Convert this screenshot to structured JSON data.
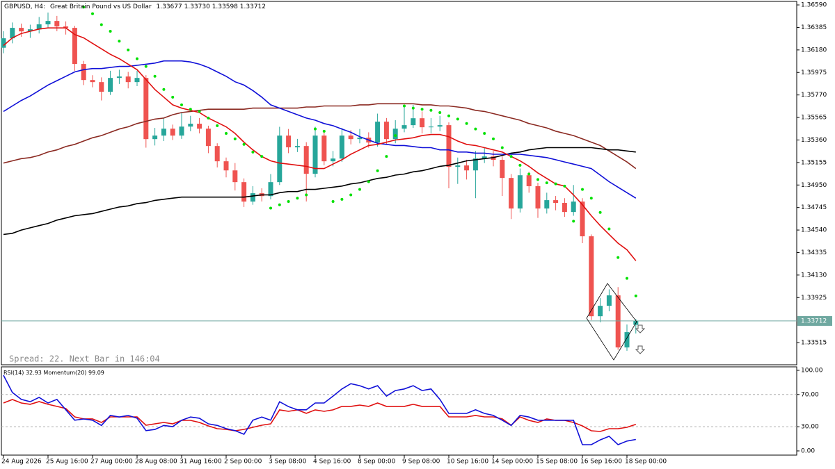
{
  "chart_data": [
    {
      "type": "candlestick",
      "symbol": "GBPUSD, H4:",
      "description": "Great Britain Pound vs US Dollar",
      "ohlc_labels": [
        "1.33677",
        "1.33730",
        "1.33598",
        "1.33712"
      ],
      "status": "Spread: 22. Next Bar in 146:04",
      "up_color": "#26a69a",
      "down_color": "#ef5350",
      "price_line_color": "#6fa8a0",
      "open": [
        1.362,
        1.36286,
        1.36381,
        1.36349,
        1.36368,
        1.36413,
        1.36444,
        1.36394,
        1.36381,
        1.36052,
        1.35906,
        1.35887,
        1.35799,
        1.35925,
        1.35938,
        1.35887,
        1.35925,
        1.35368,
        1.354,
        1.35463,
        1.354,
        1.35482,
        1.35508,
        1.35463,
        1.35305,
        1.35166,
        1.35083,
        1.34976,
        1.34799,
        1.34875,
        1.34849,
        1.34976,
        1.354,
        1.35293,
        1.35305,
        1.35052,
        1.354,
        1.35166,
        1.35191,
        1.354,
        1.35368,
        1.35381,
        1.35337,
        1.35527,
        1.35368,
        1.35463,
        1.35495,
        1.35558,
        1.35476,
        1.35482,
        1.35495,
        1.35115,
        1.35128,
        1.35083,
        1.35191,
        1.3521,
        1.35179,
        1.35014,
        1.34736,
        1.35039,
        1.34939,
        1.34736,
        1.34812,
        1.34787,
        1.34704,
        1.34799,
        1.34483,
        1.33755,
        1.3385,
        1.33945,
        1.33471,
        1.33677
      ],
      "high": [
        1.3635,
        1.3643,
        1.3642,
        1.3641,
        1.3648,
        1.3652,
        1.3649,
        1.3644,
        1.364,
        1.3608,
        1.3595,
        1.3593,
        1.3599,
        1.36,
        1.3598,
        1.3599,
        1.3595,
        1.3547,
        1.3556,
        1.355,
        1.3561,
        1.3558,
        1.3556,
        1.3549,
        1.3533,
        1.352,
        1.3515,
        1.3501,
        1.3494,
        1.3492,
        1.3505,
        1.3548,
        1.3546,
        1.3537,
        1.3534,
        1.3548,
        1.3543,
        1.3526,
        1.3547,
        1.3545,
        1.3546,
        1.3543,
        1.356,
        1.3556,
        1.3554,
        1.3566,
        1.3568,
        1.3562,
        1.3556,
        1.3558,
        1.3552,
        1.352,
        1.3518,
        1.3526,
        1.3529,
        1.3526,
        1.3521,
        1.3505,
        1.351,
        1.3507,
        1.3497,
        1.3488,
        1.3485,
        1.3483,
        1.3495,
        1.3483,
        1.345,
        1.3392,
        1.34,
        1.3402,
        1.3368,
        1.3373
      ],
      "low": [
        1.3615,
        1.3624,
        1.363,
        1.3629,
        1.3633,
        1.3638,
        1.3635,
        1.3632,
        1.3599,
        1.3586,
        1.3584,
        1.3572,
        1.3577,
        1.3587,
        1.3583,
        1.3585,
        1.3529,
        1.3531,
        1.3535,
        1.3536,
        1.3537,
        1.3544,
        1.3542,
        1.3524,
        1.3511,
        1.3502,
        1.349,
        1.3475,
        1.3477,
        1.348,
        1.3482,
        1.3495,
        1.3524,
        1.3525,
        1.348,
        1.3502,
        1.3513,
        1.3512,
        1.3516,
        1.3532,
        1.3533,
        1.3529,
        1.353,
        1.3532,
        1.3533,
        1.3543,
        1.3547,
        1.3542,
        1.3542,
        1.3544,
        1.3492,
        1.3496,
        1.35,
        1.3483,
        1.3515,
        1.3512,
        1.3485,
        1.3464,
        1.347,
        1.3488,
        1.3465,
        1.3469,
        1.3472,
        1.3466,
        1.3467,
        1.3442,
        1.3372,
        1.337,
        1.338,
        1.3345,
        1.3344,
        1.33598
      ],
      "close": [
        1.36286,
        1.36381,
        1.36349,
        1.36368,
        1.36413,
        1.36444,
        1.36394,
        1.36381,
        1.36052,
        1.35906,
        1.35887,
        1.35799,
        1.35925,
        1.35938,
        1.35887,
        1.35925,
        1.35368,
        1.354,
        1.35463,
        1.354,
        1.35482,
        1.35508,
        1.35463,
        1.35305,
        1.35166,
        1.35083,
        1.34976,
        1.34799,
        1.34875,
        1.34849,
        1.34976,
        1.354,
        1.35293,
        1.35305,
        1.35052,
        1.354,
        1.35166,
        1.35191,
        1.354,
        1.35368,
        1.35381,
        1.35337,
        1.35527,
        1.35368,
        1.35463,
        1.35495,
        1.35558,
        1.35476,
        1.35482,
        1.35495,
        1.35115,
        1.35128,
        1.35083,
        1.35191,
        1.3521,
        1.35179,
        1.35014,
        1.34736,
        1.35039,
        1.34939,
        1.34736,
        1.34812,
        1.34787,
        1.34704,
        1.34799,
        1.34483,
        1.33755,
        1.3385,
        1.33945,
        1.33471,
        1.3361,
        1.33712
      ],
      "overlays": [
        {
          "type": "line",
          "color": "#8b2a22",
          "values": [
            1.3515,
            1.3517,
            1.3519,
            1.352,
            1.3522,
            1.3525,
            1.3527,
            1.353,
            1.3532,
            1.3535,
            1.3538,
            1.354,
            1.3543,
            1.3546,
            1.3548,
            1.3551,
            1.3553,
            1.3555,
            1.3556,
            1.3559,
            1.3561,
            1.3562,
            1.3563,
            1.3564,
            1.3564,
            1.3564,
            1.3564,
            1.3564,
            1.3565,
            1.3565,
            1.3565,
            1.3565,
            1.3565,
            1.3565,
            1.3566,
            1.3566,
            1.3567,
            1.3567,
            1.3567,
            1.3567,
            1.3568,
            1.3568,
            1.3569,
            1.3569,
            1.3569,
            1.3569,
            1.3569,
            1.3568,
            1.3568,
            1.3567,
            1.3567,
            1.3566,
            1.3565,
            1.3563,
            1.3562,
            1.356,
            1.3558,
            1.3556,
            1.3554,
            1.3551,
            1.3549,
            1.3547,
            1.3544,
            1.3542,
            1.354,
            1.3537,
            1.3534,
            1.3531,
            1.3526,
            1.3521,
            1.3516,
            1.351
          ]
        },
        {
          "type": "line",
          "color": "#000000",
          "values": [
            1.345,
            1.3451,
            1.3454,
            1.3456,
            1.3458,
            1.346,
            1.3463,
            1.3465,
            1.3467,
            1.3468,
            1.3469,
            1.3471,
            1.3473,
            1.3475,
            1.3476,
            1.3478,
            1.3479,
            1.3481,
            1.3482,
            1.3483,
            1.3484,
            1.3484,
            1.3484,
            1.3484,
            1.3484,
            1.3484,
            1.3484,
            1.3484,
            1.3485,
            1.3486,
            1.3486,
            1.3488,
            1.3489,
            1.3489,
            1.3491,
            1.3491,
            1.3492,
            1.3493,
            1.3494,
            1.3496,
            1.3497,
            1.3499,
            1.3501,
            1.3502,
            1.3504,
            1.3505,
            1.3507,
            1.3508,
            1.351,
            1.3512,
            1.3513,
            1.3515,
            1.3517,
            1.3518,
            1.3519,
            1.352,
            1.3522,
            1.3524,
            1.3525,
            1.3527,
            1.3528,
            1.3529,
            1.3529,
            1.3529,
            1.3529,
            1.3529,
            1.3529,
            1.3528,
            1.3527,
            1.3527,
            1.3526,
            1.3525
          ]
        },
        {
          "type": "line",
          "color": "#1010d8",
          "values": [
            1.3562,
            1.3567,
            1.3572,
            1.3576,
            1.3581,
            1.3586,
            1.359,
            1.3594,
            1.3598,
            1.36,
            1.3601,
            1.3601,
            1.3602,
            1.3603,
            1.3603,
            1.3604,
            1.3605,
            1.3606,
            1.3608,
            1.3608,
            1.3608,
            1.3607,
            1.3605,
            1.3602,
            1.3598,
            1.3594,
            1.3589,
            1.3586,
            1.3581,
            1.3575,
            1.3568,
            1.3565,
            1.3562,
            1.3559,
            1.3556,
            1.3554,
            1.3551,
            1.3549,
            1.3546,
            1.3543,
            1.3539,
            1.3536,
            1.3533,
            1.3532,
            1.3531,
            1.3531,
            1.353,
            1.3529,
            1.3529,
            1.3527,
            1.3527,
            1.3525,
            1.3525,
            1.3524,
            1.3524,
            1.3523,
            1.3523,
            1.3523,
            1.3523,
            1.3522,
            1.3521,
            1.352,
            1.3518,
            1.3516,
            1.3514,
            1.3512,
            1.351,
            1.3504,
            1.3498,
            1.3493,
            1.3488,
            1.3483
          ]
        },
        {
          "type": "line",
          "color": "#e01010",
          "values": [
            1.3622,
            1.3629,
            1.3633,
            1.3635,
            1.3637,
            1.3638,
            1.3638,
            1.3638,
            1.3632,
            1.3629,
            1.3624,
            1.3619,
            1.3614,
            1.361,
            1.3605,
            1.36,
            1.3591,
            1.3582,
            1.3575,
            1.3568,
            1.3565,
            1.3563,
            1.3561,
            1.3556,
            1.3552,
            1.3548,
            1.3542,
            1.3534,
            1.3527,
            1.3521,
            1.3517,
            1.3515,
            1.3514,
            1.3513,
            1.3512,
            1.351,
            1.351,
            1.3514,
            1.3518,
            1.3523,
            1.3527,
            1.3531,
            1.3532,
            1.3534,
            1.3536,
            1.3537,
            1.3538,
            1.354,
            1.3541,
            1.3541,
            1.3539,
            1.3535,
            1.3532,
            1.3531,
            1.3529,
            1.3527,
            1.3525,
            1.3521,
            1.3517,
            1.3512,
            1.3506,
            1.3501,
            1.3496,
            1.3494,
            1.3486,
            1.3477,
            1.3467,
            1.3458,
            1.345,
            1.3442,
            1.3436,
            1.3426
          ]
        },
        {
          "type": "dots",
          "color": "#00e000",
          "values": [
            null,
            null,
            null,
            null,
            null,
            null,
            null,
            null,
            null,
            1.3657,
            1.3651,
            1.3641,
            1.3635,
            1.3626,
            1.3618,
            1.361,
            1.3603,
            1.3594,
            1.3582,
            1.3575,
            1.3568,
            1.3564,
            1.3562,
            1.3556,
            1.3549,
            1.3542,
            1.3537,
            1.3532,
            1.3525,
            1.3521,
            1.3474,
            1.3477,
            1.348,
            1.3483,
            1.3486,
            1.3546,
            1.3544,
            1.348,
            1.3482,
            1.3486,
            1.3491,
            1.3498,
            1.3508,
            1.3521,
            1.354,
            1.3567,
            1.3565,
            1.3564,
            1.3563,
            1.3561,
            1.3558,
            1.3555,
            1.3551,
            1.3546,
            1.3542,
            1.3537,
            1.3529,
            1.3521,
            1.3513,
            1.3505,
            1.35,
            1.3497,
            1.3496,
            1.3494,
            1.3462,
            1.3491,
            1.3483,
            1.347,
            1.3455,
            1.3429,
            1.341,
            1.3394
          ]
        }
      ],
      "ylim": [
        1.33313,
        1.36622
      ],
      "yticks": [
        {
          "value": 1.3659,
          "label": "1.36590"
        },
        1.36385,
        {
          "value": 1.3618,
          "label": "1.36180"
        },
        1.35975,
        {
          "value": 1.3577,
          "label": "1.35770"
        },
        1.35565,
        {
          "value": 1.3536,
          "label": "1.35360"
        },
        1.35155,
        {
          "value": 1.3495,
          "label": "1.34950"
        },
        1.34745,
        {
          "value": 1.3454,
          "label": "1.34540"
        },
        1.34335,
        {
          "value": 1.3413,
          "label": "1.34130"
        },
        1.33925,
        1.33515
      ]
    },
    {
      "type": "line",
      "series": [
        {
          "name": "RSI(14)",
          "color": "#e01010",
          "values": [
            59.5,
            63.8,
            59.5,
            57.8,
            61.2,
            57.8,
            55.2,
            52.6,
            42.2,
            39.7,
            39.7,
            35.3,
            42.2,
            42.2,
            42.2,
            42.2,
            31.9,
            33.6,
            35.3,
            33.6,
            37.9,
            37.9,
            35.3,
            31.0,
            27.6,
            26.7,
            25.0,
            26.7,
            29.3,
            31.9,
            33.6,
            50.9,
            49.1,
            50.9,
            46.6,
            50.9,
            49.1,
            50.9,
            55.2,
            55.2,
            56.9,
            55.2,
            59.5,
            55.2,
            55.2,
            55.2,
            57.8,
            55.2,
            55.2,
            55.2,
            42.2,
            42.2,
            42.2,
            44.0,
            42.2,
            42.2,
            39.7,
            31.9,
            42.2,
            37.9,
            35.3,
            39.7,
            37.9,
            37.9,
            35.3,
            31.0,
            25.0,
            24.1,
            27.6,
            27.6,
            29.3,
            32.93
          ]
        },
        {
          "name": "Momentum(20)",
          "color": "#1010d8",
          "axis": "y2",
          "values": [
            100.69,
            100.26,
            100.09,
            100.03,
            100.14,
            100.0,
            100.09,
            99.83,
            99.57,
            99.6,
            99.57,
            99.44,
            99.69,
            99.65,
            99.69,
            99.62,
            99.31,
            99.34,
            99.44,
            99.41,
            99.57,
            99.65,
            99.62,
            99.48,
            99.44,
            99.36,
            99.31,
            99.22,
            99.57,
            99.65,
            99.57,
            100.03,
            99.91,
            99.83,
            99.83,
            100.0,
            100.0,
            100.17,
            100.35,
            100.48,
            100.43,
            100.35,
            100.43,
            100.17,
            100.31,
            100.35,
            100.43,
            100.31,
            100.35,
            100.09,
            99.74,
            99.74,
            99.74,
            99.83,
            99.74,
            99.69,
            99.57,
            99.44,
            99.69,
            99.65,
            99.57,
            99.57,
            99.57,
            99.57,
            99.57,
            98.96,
            98.96,
            99.08,
            99.17,
            98.96,
            99.05,
            99.09
          ]
        }
      ],
      "ylim": [
        -5.2,
        104.3
      ],
      "yticks": [
        {
          "value": 100,
          "label": "100.00"
        },
        {
          "value": 70,
          "label": "70.00"
        },
        {
          "value": 30,
          "label": "30.00"
        },
        {
          "value": 0,
          "label": "0.00"
        }
      ],
      "y2lim": [
        98.7,
        100.9
      ],
      "grid": "dashed",
      "xticks": [
        {
          "value": 0,
          "label": "24 Aug 2026"
        },
        {
          "value": 5,
          "label": "25 Aug 16:00"
        },
        {
          "value": 10,
          "label": "27 Aug 00:00"
        },
        {
          "value": 15,
          "label": "28 Aug 08:00"
        },
        {
          "value": 20,
          "label": "31 Aug 16:00"
        },
        {
          "value": 25,
          "label": "2 Sep 00:00"
        },
        {
          "value": 30,
          "label": "3 Sep 08:00"
        },
        {
          "value": 35,
          "label": "4 Sep 16:00"
        },
        {
          "value": 40,
          "label": "8 Sep 00:00"
        },
        {
          "value": 45,
          "label": "9 Sep 08:00"
        },
        {
          "value": 50,
          "label": "10 Sep 16:00"
        },
        {
          "value": 55,
          "label": "14 Sep 00:00"
        },
        {
          "value": 60,
          "label": "15 Sep 08:00"
        },
        {
          "value": 65,
          "label": "16 Sep 16:00"
        },
        {
          "value": 70,
          "label": "18 Sep 00:00"
        }
      ]
    }
  ]
}
